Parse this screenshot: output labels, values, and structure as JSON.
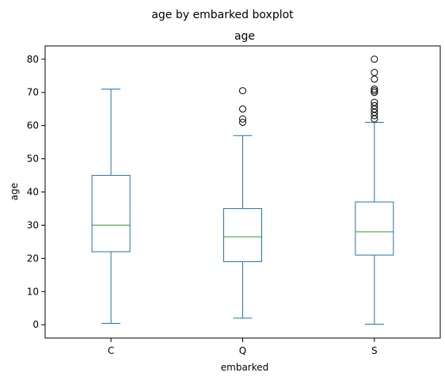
{
  "chart_data": {
    "type": "boxplot",
    "suptitle": "age by embarked boxplot",
    "title": "age",
    "xlabel": "embarked",
    "ylabel": "age",
    "categories": [
      "C",
      "Q",
      "S"
    ],
    "ylim": [
      -4,
      84
    ],
    "yticks": [
      0,
      10,
      20,
      30,
      40,
      50,
      60,
      70,
      80
    ],
    "grid": false,
    "colors": {
      "box": "#1f77b4",
      "median": "#2ca02c",
      "frame": "#000000"
    },
    "boxes": [
      {
        "category": "C",
        "whisker_low": 0.42,
        "q1": 22,
        "median": 30,
        "q3": 45,
        "whisker_high": 71,
        "outliers": []
      },
      {
        "category": "Q",
        "whisker_low": 2,
        "q1": 19,
        "median": 26.5,
        "q3": 35,
        "whisker_high": 57,
        "outliers": [
          61,
          62,
          65,
          70.5
        ]
      },
      {
        "category": "S",
        "whisker_low": 0.17,
        "q1": 21,
        "median": 28,
        "q3": 37,
        "whisker_high": 61,
        "outliers": [
          62,
          63,
          64,
          65,
          66,
          67,
          70,
          70.5,
          71,
          74,
          76,
          80
        ]
      }
    ]
  }
}
